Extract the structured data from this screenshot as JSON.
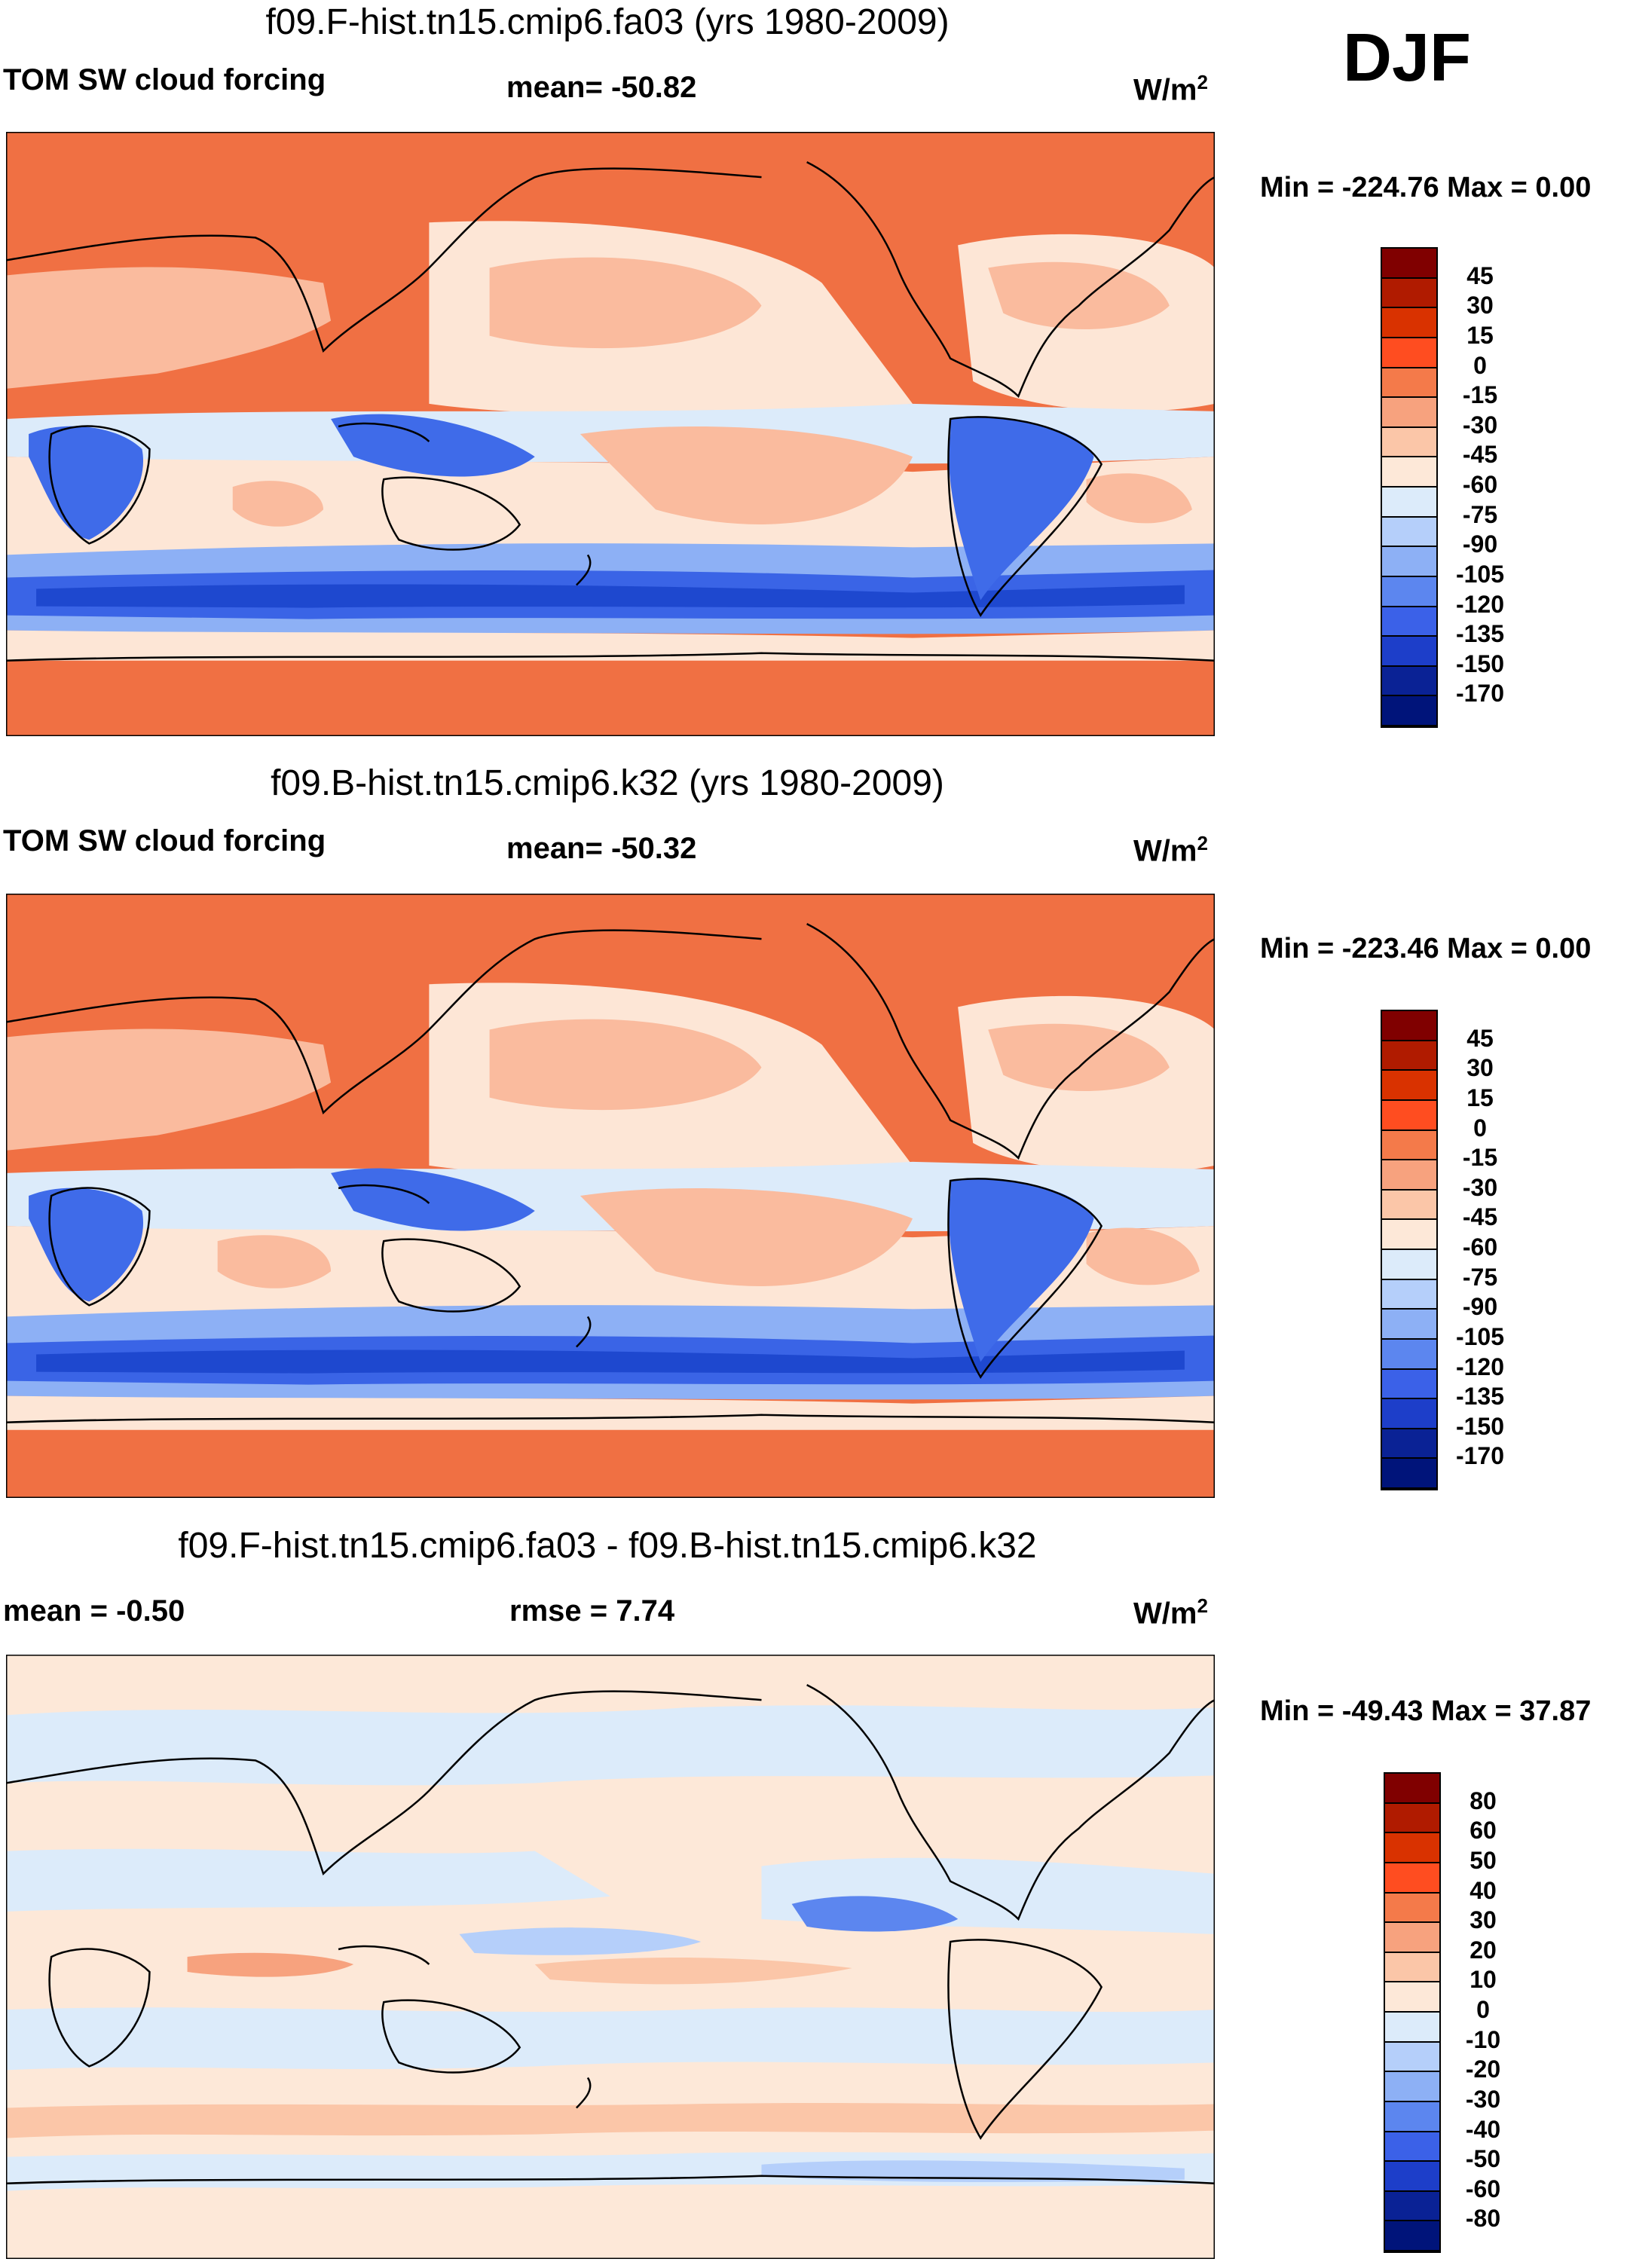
{
  "season": "DJF",
  "units_prefix": "W/m",
  "units_exp": "2",
  "panels": [
    {
      "title": "f09.F-hist.tn15.cmip6.fa03 (yrs 1980-2009)",
      "left_label": "TOM SW cloud forcing",
      "center_label": "mean= -50.82",
      "minmax": "Min = -224.76 Max =   0.00",
      "colorbar": {
        "labels": [
          "45",
          "30",
          "15",
          "0",
          "-15",
          "-30",
          "-45",
          "-60",
          "-75",
          "-90",
          "-105",
          "-120",
          "-135",
          "-150",
          "-170"
        ],
        "colors": [
          "#800000",
          "#b01b00",
          "#d93200",
          "#ff4d20",
          "#f47a4a",
          "#f7a27e",
          "#fbc6a8",
          "#fde8d8",
          "#dcebfa",
          "#b5cffa",
          "#8db0f5",
          "#5c86ef",
          "#3b61e8",
          "#1d3ec9",
          "#0a2295",
          "#00147a"
        ]
      },
      "fields": {
        "land_n": "#f07043",
        "subtrop": "#fabb9e",
        "eq_band": "#fde6d6",
        "storm": "#3a64e6",
        "storm_core": "#1e48cf",
        "land_conv": "#3f6be9",
        "antarctic": "#f07043"
      }
    },
    {
      "title": "f09.B-hist.tn15.cmip6.k32 (yrs 1980-2009)",
      "left_label": "TOM SW cloud forcing",
      "center_label": "mean= -50.32",
      "minmax": "Min = -223.46 Max =   0.00",
      "colorbar": {
        "labels": [
          "45",
          "30",
          "15",
          "0",
          "-15",
          "-30",
          "-45",
          "-60",
          "-75",
          "-90",
          "-105",
          "-120",
          "-135",
          "-150",
          "-170"
        ],
        "colors": [
          "#800000",
          "#b01b00",
          "#d93200",
          "#ff4d20",
          "#f47a4a",
          "#f7a27e",
          "#fbc6a8",
          "#fde8d8",
          "#dcebfa",
          "#b5cffa",
          "#8db0f5",
          "#5c86ef",
          "#3b61e8",
          "#1d3ec9",
          "#0a2295",
          "#00147a"
        ]
      },
      "fields": {
        "land_n": "#f07043",
        "subtrop": "#fabb9e",
        "eq_band": "#fde6d6",
        "storm": "#3a64e6",
        "storm_core": "#1e48cf",
        "land_conv": "#3f6be9",
        "antarctic": "#f07043"
      }
    },
    {
      "title": "f09.F-hist.tn15.cmip6.fa03 - f09.B-hist.tn15.cmip6.k32",
      "left_label": "mean =  -0.50",
      "center_label": "rmse =    7.74",
      "minmax": "Min = -49.43 Max =  37.87",
      "colorbar": {
        "labels": [
          "80",
          "60",
          "50",
          "40",
          "30",
          "20",
          "10",
          "0",
          "-10",
          "-20",
          "-30",
          "-40",
          "-50",
          "-60",
          "-80"
        ],
        "colors": [
          "#800000",
          "#b01b00",
          "#d93200",
          "#ff4d20",
          "#f47a4a",
          "#f7a27e",
          "#fbc6a8",
          "#fde8d8",
          "#dcebfa",
          "#b5cffa",
          "#8db0f5",
          "#5c86ef",
          "#3b61e8",
          "#1d3ec9",
          "#0a2295",
          "#00147a"
        ]
      },
      "fields": {
        "base": "#fde8d8",
        "neg": "#dcebfa",
        "neg2": "#b5cffa",
        "pos": "#fbc6a8",
        "pos2": "#f7a27e",
        "strong_neg": "#5c86ef"
      }
    }
  ]
}
